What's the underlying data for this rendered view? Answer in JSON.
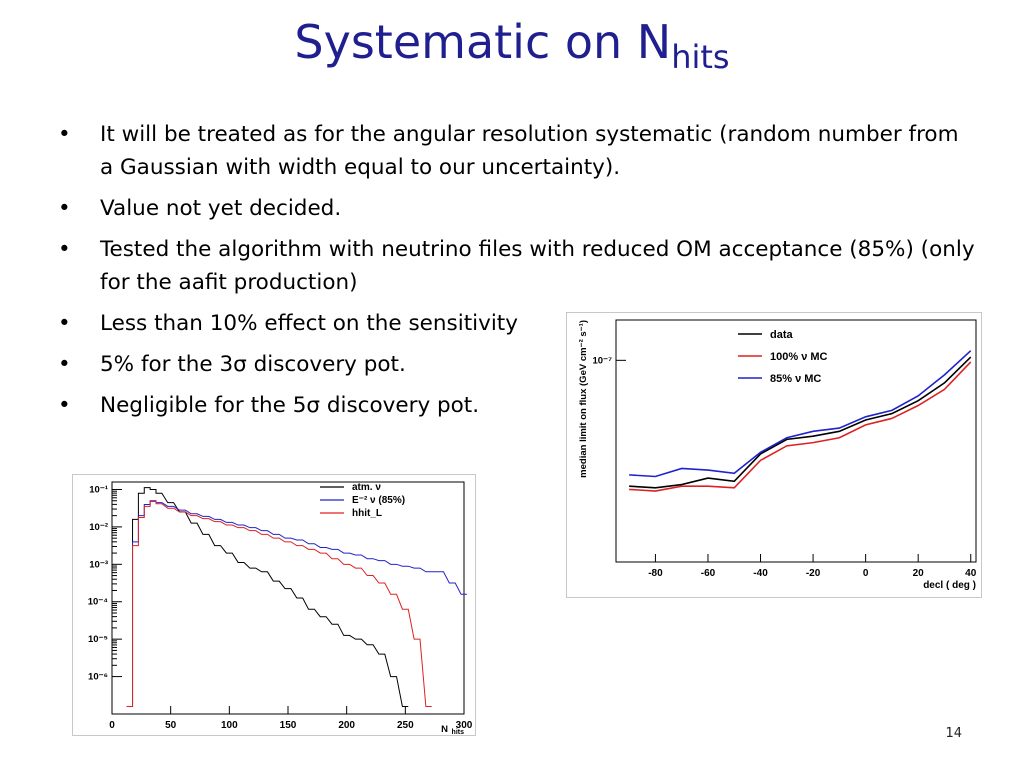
{
  "slide": {
    "title_main": "Systematic on N",
    "title_sub": "hits",
    "bullets": [
      "It will be treated as for the angular resolution systematic (random number from a Gaussian with width equal to our uncertainty).",
      "Value not yet decided.",
      "Tested the algorithm with neutrino files with reduced OM acceptance (85%) (only for the aafit production)",
      "Less than 10% effect on the sensitivity",
      "5% for the 3σ discovery pot.",
      "Negligible for the 5σ discovery pot."
    ],
    "bullet_glyph": "•",
    "page_number": "14",
    "title_color": "#1f1f8f"
  },
  "chart_data": [
    {
      "type": "line",
      "name": "histogram",
      "xlabel": "N",
      "xlabel_sub": "hits",
      "ylabel": "",
      "log_y": true,
      "xlim": [
        0,
        300
      ],
      "ylim_log10": [
        -7,
        -0.8
      ],
      "x_ticks": [
        "0",
        "50",
        "100",
        "150",
        "200",
        "250",
        "300"
      ],
      "x_tick_values": [
        0,
        50,
        100,
        150,
        200,
        250,
        300
      ],
      "y_ticks": [
        "10⁻¹",
        "10⁻²",
        "10⁻³",
        "10⁻⁴",
        "10⁻⁵",
        "10⁻⁶"
      ],
      "y_tick_exponents": [
        -1,
        -2,
        -3,
        -4,
        -5,
        -6
      ],
      "legend": [
        {
          "label": "atm. ν",
          "color": "#000000"
        },
        {
          "label": "E⁻² ν (85%)",
          "color": "#2222cc"
        },
        {
          "label": "hhit_L",
          "color": "#dd2222"
        }
      ],
      "series": [
        {
          "name": "atm. ν",
          "color": "#000000",
          "x": [
            15,
            20,
            25,
            30,
            35,
            40,
            50,
            60,
            70,
            80,
            90,
            100,
            110,
            120,
            130,
            140,
            150,
            160,
            170,
            180,
            190,
            200,
            210,
            220,
            230,
            240,
            250
          ],
          "log10y": [
            -6.8,
            -1.8,
            -1.1,
            -0.95,
            -1.0,
            -1.1,
            -1.35,
            -1.6,
            -1.9,
            -2.2,
            -2.5,
            -2.7,
            -2.95,
            -3.1,
            -3.2,
            -3.45,
            -3.65,
            -3.9,
            -4.2,
            -4.4,
            -4.6,
            -4.9,
            -5.0,
            -5.15,
            -5.4,
            -6.0,
            -6.8
          ]
        },
        {
          "name": "E⁻² ν (85%)",
          "color": "#2222cc",
          "x": [
            15,
            20,
            25,
            30,
            35,
            40,
            50,
            60,
            70,
            80,
            90,
            100,
            110,
            120,
            130,
            140,
            150,
            160,
            170,
            180,
            190,
            200,
            210,
            220,
            230,
            240,
            250,
            260,
            270,
            280,
            290,
            300
          ],
          "log10y": [
            -6.8,
            -2.4,
            -1.7,
            -1.4,
            -1.3,
            -1.35,
            -1.45,
            -1.55,
            -1.65,
            -1.72,
            -1.8,
            -1.88,
            -1.95,
            -2.02,
            -2.1,
            -2.2,
            -2.3,
            -2.35,
            -2.45,
            -2.55,
            -2.6,
            -2.7,
            -2.75,
            -2.85,
            -2.9,
            -3.0,
            -3.05,
            -3.1,
            -3.2,
            -3.2,
            -3.5,
            -3.8
          ]
        },
        {
          "name": "hhit_L",
          "color": "#dd2222",
          "x": [
            15,
            20,
            25,
            30,
            35,
            40,
            50,
            60,
            70,
            80,
            90,
            100,
            110,
            120,
            130,
            140,
            150,
            160,
            170,
            180,
            190,
            200,
            210,
            220,
            230,
            240,
            250,
            260,
            270
          ],
          "log10y": [
            -6.8,
            -2.5,
            -1.75,
            -1.45,
            -1.32,
            -1.38,
            -1.5,
            -1.6,
            -1.7,
            -1.78,
            -1.86,
            -1.95,
            -2.02,
            -2.1,
            -2.2,
            -2.3,
            -2.4,
            -2.5,
            -2.6,
            -2.7,
            -2.85,
            -3.0,
            -3.1,
            -3.3,
            -3.5,
            -3.8,
            -4.2,
            -5.0,
            -6.8
          ]
        }
      ]
    },
    {
      "type": "line",
      "name": "sensitivity",
      "xlabel": "decl ( deg )",
      "ylabel": "median limit on flux (GeV cm⁻² s⁻¹)",
      "log_y": true,
      "xlim": [
        -95,
        42
      ],
      "ylim_log10": [
        -8.25,
        -6.75
      ],
      "x_ticks": [
        "-80",
        "-60",
        "-40",
        "-20",
        "0",
        "20",
        "40"
      ],
      "x_tick_values": [
        -80,
        -60,
        -40,
        -20,
        0,
        20,
        40
      ],
      "y_ticks": [
        "10⁻⁷"
      ],
      "y_tick_exponents": [
        -7
      ],
      "legend": [
        {
          "label": "data",
          "color": "#000000"
        },
        {
          "label": "100% ν MC",
          "color": "#dd2222"
        },
        {
          "label": "85% ν MC",
          "color": "#2222cc"
        }
      ],
      "series": [
        {
          "name": "data",
          "color": "#000000",
          "x": [
            -90,
            -80,
            -70,
            -60,
            -50,
            -40,
            -30,
            -20,
            -10,
            0,
            10,
            20,
            30,
            40
          ],
          "log10y": [
            -7.78,
            -7.79,
            -7.77,
            -7.73,
            -7.75,
            -7.58,
            -7.49,
            -7.47,
            -7.44,
            -7.37,
            -7.33,
            -7.25,
            -7.14,
            -6.98
          ]
        },
        {
          "name": "100% ν MC",
          "color": "#dd2222",
          "x": [
            -90,
            -80,
            -70,
            -60,
            -50,
            -40,
            -30,
            -20,
            -10,
            0,
            10,
            20,
            30,
            40
          ],
          "log10y": [
            -7.8,
            -7.81,
            -7.78,
            -7.78,
            -7.79,
            -7.62,
            -7.53,
            -7.51,
            -7.48,
            -7.4,
            -7.36,
            -7.28,
            -7.18,
            -7.01
          ]
        },
        {
          "name": "85% ν MC",
          "color": "#2222cc",
          "x": [
            -90,
            -80,
            -70,
            -60,
            -50,
            -40,
            -30,
            -20,
            -10,
            0,
            10,
            20,
            30,
            40
          ],
          "log10y": [
            -7.71,
            -7.72,
            -7.67,
            -7.68,
            -7.7,
            -7.57,
            -7.48,
            -7.44,
            -7.42,
            -7.35,
            -7.31,
            -7.22,
            -7.09,
            -6.94
          ]
        }
      ]
    }
  ]
}
